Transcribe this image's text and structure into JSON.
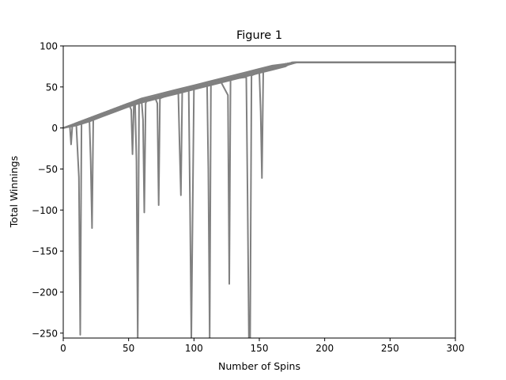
{
  "chart_data": {
    "type": "line",
    "title": "Figure 1",
    "xlabel": "Number of Spins",
    "ylabel": "Total Winnings",
    "xlim": [
      0,
      300
    ],
    "ylim": [
      -256,
      100
    ],
    "xticks": [
      0,
      50,
      100,
      150,
      200,
      250,
      300
    ],
    "xtick_labels": [
      "0",
      "50",
      "100",
      "150",
      "200",
      "250",
      "300"
    ],
    "yticks": [
      100,
      50,
      0,
      -50,
      -100,
      -150,
      -200,
      -250
    ],
    "ytick_labels": [
      "100",
      "50",
      "0",
      "−50",
      "−100",
      "−150",
      "−200",
      "−250"
    ],
    "grid": false,
    "legend": "none",
    "line_color": "#808080",
    "series": [
      {
        "x": [
          0,
          5,
          10,
          12,
          13,
          14,
          20,
          30,
          40,
          50,
          60,
          70,
          80,
          90,
          100,
          110,
          120,
          130,
          140,
          150,
          160,
          170,
          178,
          300
        ],
        "y": [
          0,
          2,
          4,
          -60,
          -252,
          6,
          10,
          18,
          24,
          30,
          34,
          38,
          42,
          46,
          50,
          54,
          58,
          62,
          66,
          70,
          74,
          78,
          80,
          80
        ]
      },
      {
        "x": [
          0,
          10,
          20,
          21,
          22,
          23,
          30,
          40,
          50,
          52,
          53,
          54,
          60,
          70,
          80,
          90,
          100,
          110,
          120,
          126,
          127,
          128,
          140,
          150,
          160,
          170,
          177,
          300
        ],
        "y": [
          0,
          4,
          10,
          -40,
          -122,
          12,
          18,
          24,
          30,
          22,
          -32,
          30,
          34,
          38,
          42,
          46,
          50,
          54,
          58,
          40,
          -190,
          60,
          66,
          70,
          74,
          78,
          80,
          80
        ]
      },
      {
        "x": [
          0,
          10,
          20,
          30,
          40,
          50,
          55,
          56,
          57,
          58,
          60,
          70,
          80,
          90,
          100,
          110,
          111,
          112,
          113,
          120,
          130,
          140,
          150,
          160,
          170,
          178,
          300
        ],
        "y": [
          0,
          5,
          9,
          16,
          22,
          28,
          30,
          -40,
          -256,
          32,
          34,
          38,
          42,
          46,
          50,
          54,
          -50,
          -256,
          56,
          58,
          62,
          66,
          70,
          74,
          78,
          80,
          80
        ]
      },
      {
        "x": [
          0,
          10,
          20,
          30,
          40,
          50,
          60,
          61,
          62,
          63,
          64,
          70,
          72,
          73,
          74,
          80,
          90,
          100,
          110,
          120,
          130,
          140,
          150,
          151,
          152,
          153,
          160,
          170,
          176,
          300
        ],
        "y": [
          0,
          3,
          8,
          14,
          20,
          26,
          32,
          10,
          -103,
          30,
          34,
          38,
          30,
          -94,
          36,
          40,
          44,
          48,
          52,
          56,
          60,
          64,
          68,
          20,
          -61,
          70,
          74,
          78,
          80,
          80
        ]
      },
      {
        "x": [
          0,
          10,
          20,
          30,
          40,
          50,
          60,
          70,
          80,
          88,
          89,
          90,
          91,
          96,
          97,
          98,
          100,
          110,
          120,
          130,
          140,
          141,
          142,
          143,
          144,
          150,
          160,
          170,
          179,
          300
        ],
        "y": [
          0,
          4,
          10,
          16,
          22,
          28,
          33,
          37,
          41,
          44,
          -20,
          -82,
          45,
          46,
          -100,
          -256,
          48,
          52,
          56,
          60,
          62,
          -80,
          -256,
          -256,
          64,
          68,
          72,
          76,
          80,
          80
        ]
      },
      {
        "x": [
          0,
          5,
          6,
          7,
          10,
          20,
          30,
          40,
          50,
          60,
          70,
          80,
          90,
          100,
          110,
          120,
          130,
          140,
          150,
          160,
          170,
          180,
          300
        ],
        "y": [
          0,
          3,
          -20,
          4,
          6,
          12,
          18,
          24,
          30,
          36,
          40,
          44,
          48,
          52,
          56,
          60,
          64,
          68,
          72,
          76,
          78,
          80,
          80
        ]
      },
      {
        "x": [
          0,
          10,
          20,
          30,
          40,
          50,
          60,
          70,
          80,
          90,
          100,
          110,
          120,
          130,
          140,
          150,
          160,
          170,
          178,
          300
        ],
        "y": [
          0,
          6,
          12,
          18,
          23,
          27,
          31,
          36,
          40,
          44,
          48,
          52,
          56,
          60,
          64,
          68,
          72,
          76,
          80,
          80
        ]
      },
      {
        "x": [
          0,
          10,
          20,
          30,
          40,
          50,
          60,
          70,
          80,
          90,
          100,
          110,
          120,
          130,
          140,
          150,
          160,
          170,
          175,
          300
        ],
        "y": [
          0,
          4,
          9,
          15,
          21,
          26,
          31,
          35,
          39,
          43,
          47,
          51,
          55,
          59,
          63,
          67,
          71,
          75,
          80,
          80
        ]
      }
    ]
  }
}
